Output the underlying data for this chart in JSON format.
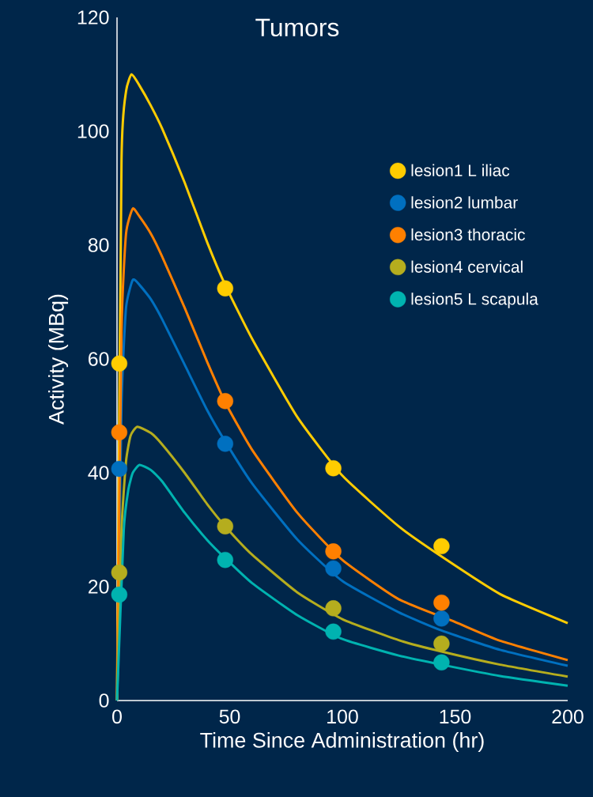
{
  "chart_data": {
    "type": "scatter",
    "title": "Tumors",
    "xlabel": "Time Since Administration (hr)",
    "ylabel": "Activity (MBq)",
    "xlim": [
      0,
      200
    ],
    "ylim": [
      0,
      120
    ],
    "xticks": [
      0,
      50,
      100,
      150,
      200
    ],
    "yticks": [
      0,
      20,
      40,
      60,
      80,
      100,
      120
    ],
    "grid": false,
    "legend": "top right",
    "series": [
      {
        "type": "line",
        "marker": "none",
        "color": "#FFCC00",
        "x": [
          0,
          2,
          4,
          6.5,
          10,
          15,
          20,
          30,
          40,
          48,
          60,
          80,
          100,
          125,
          144,
          170,
          200
        ],
        "values": [
          0,
          95,
          107,
          110,
          108,
          104.5,
          100.5,
          91,
          80.5,
          73,
          63.5,
          49.8,
          39.5,
          30.6,
          25.3,
          18.7,
          13.6
        ]
      },
      {
        "type": "line",
        "marker": "none",
        "color": "#0070C0",
        "x": [
          0,
          2,
          4,
          7,
          10,
          15,
          20,
          30,
          40,
          48,
          60,
          80,
          100,
          125,
          144,
          170,
          200
        ],
        "values": [
          0,
          52,
          69,
          73.9,
          73,
          70.5,
          67,
          59,
          51,
          45.5,
          38.1,
          28.3,
          21,
          15.5,
          12.3,
          8.9,
          6.1
        ]
      },
      {
        "type": "line",
        "marker": "none",
        "color": "#FF8000",
        "x": [
          0,
          2,
          4,
          7,
          10,
          15,
          20,
          30,
          40,
          48,
          60,
          80,
          100,
          125,
          150,
          170,
          200
        ],
        "values": [
          0,
          65,
          82,
          86.4,
          85,
          82,
          78,
          69,
          59.5,
          52.4,
          44,
          33,
          24.7,
          17.8,
          13.8,
          10.5,
          7.1
        ]
      },
      {
        "type": "line",
        "marker": "none",
        "color": "#B5AD1E",
        "x": [
          0,
          2,
          4,
          6,
          9,
          15,
          20,
          30,
          40,
          48,
          60,
          80,
          100,
          125,
          144,
          170,
          200
        ],
        "values": [
          0,
          30,
          42,
          46.5,
          48.1,
          47,
          45,
          40,
          34.5,
          30.6,
          25.6,
          19,
          14.3,
          10.6,
          8.6,
          6.3,
          4.2
        ]
      },
      {
        "type": "line",
        "marker": "none",
        "color": "#00B3B0",
        "x": [
          0,
          3,
          5,
          7,
          10,
          15,
          20,
          30,
          40,
          48,
          60,
          80,
          100,
          125,
          144,
          170,
          200
        ],
        "values": [
          0,
          30,
          37,
          40,
          41.4,
          40.5,
          38.5,
          33,
          28.2,
          25,
          20.6,
          15,
          10.8,
          7.9,
          6.3,
          4.3,
          2.6
        ]
      },
      {
        "name": "lesion1 L iliac",
        "marker": "circle",
        "color": "#FFCC00",
        "x": [
          1,
          48,
          96,
          144
        ],
        "values": [
          59.2,
          72.4,
          40.8,
          27.1
        ]
      },
      {
        "name": "lesion2 lumbar",
        "marker": "circle",
        "color": "#0070C0",
        "x": [
          1,
          48,
          96,
          144
        ],
        "values": [
          40.7,
          45.1,
          23.2,
          14.4
        ]
      },
      {
        "name": "lesion3 thoracic",
        "marker": "circle",
        "color": "#FF8000",
        "x": [
          1,
          48,
          96,
          144
        ],
        "values": [
          47.1,
          52.6,
          26.2,
          17.2
        ]
      },
      {
        "name": "lesion4 cervical",
        "marker": "circle",
        "color": "#B5AD1E",
        "x": [
          1,
          48,
          96,
          144
        ],
        "values": [
          22.5,
          30.6,
          16.2,
          10.0
        ]
      },
      {
        "name": "lesion5 L scapula",
        "marker": "circle",
        "color": "#00B3B0",
        "x": [
          1,
          48,
          96,
          144
        ],
        "values": [
          18.6,
          24.7,
          12.1,
          6.7
        ]
      }
    ]
  }
}
